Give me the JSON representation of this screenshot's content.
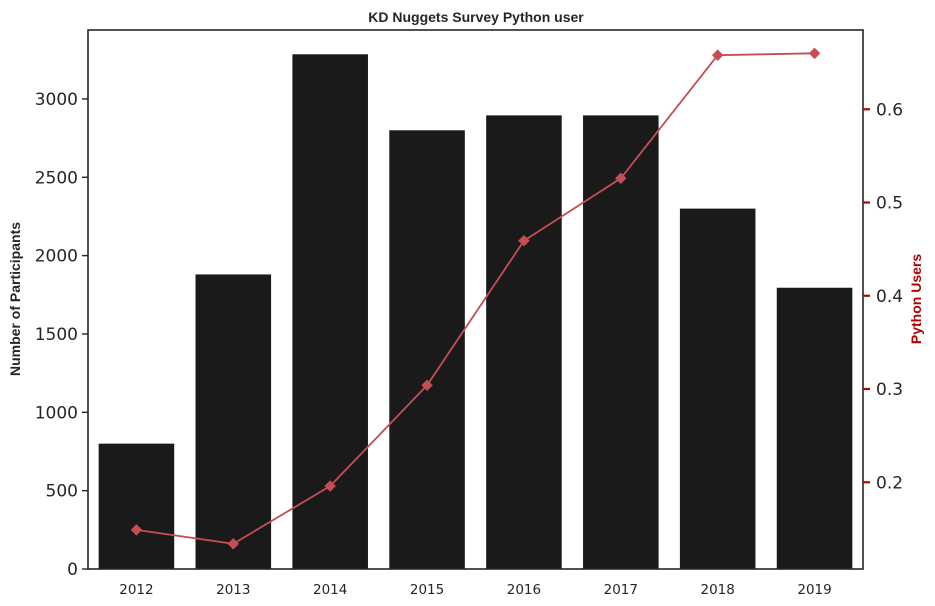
{
  "colors": {
    "bars": "#1a1a1a",
    "line": "#c44e52",
    "right_axis": "#b30000",
    "text": "#262626"
  },
  "chart_data": {
    "type": "bar+line",
    "title": "KD Nuggets Survey Python user",
    "categories": [
      "2012",
      "2013",
      "2014",
      "2015",
      "2016",
      "2017",
      "2018",
      "2019"
    ],
    "series": [
      {
        "type": "bar",
        "axis": "left",
        "values": [
          800,
          1880,
          3285,
          2800,
          2895,
          2895,
          2300,
          1795
        ]
      },
      {
        "type": "line",
        "axis": "right",
        "marker": "diamond",
        "values": [
          0.149,
          0.134,
          0.196,
          0.304,
          0.459,
          0.526,
          0.658,
          0.66
        ]
      }
    ],
    "ylabel_left": "Number of Participants",
    "ylabel_right": "Python Users",
    "ylim_left": [
      0,
      3440
    ],
    "yticks_left": [
      "0",
      "500",
      "1000",
      "1500",
      "2000",
      "2500",
      "3000"
    ],
    "ylim_right": [
      0.107,
      0.685
    ],
    "yticks_right": [
      "0.2",
      "0.3",
      "0.4",
      "0.5",
      "0.6"
    ],
    "grid": false,
    "legend": "none"
  }
}
